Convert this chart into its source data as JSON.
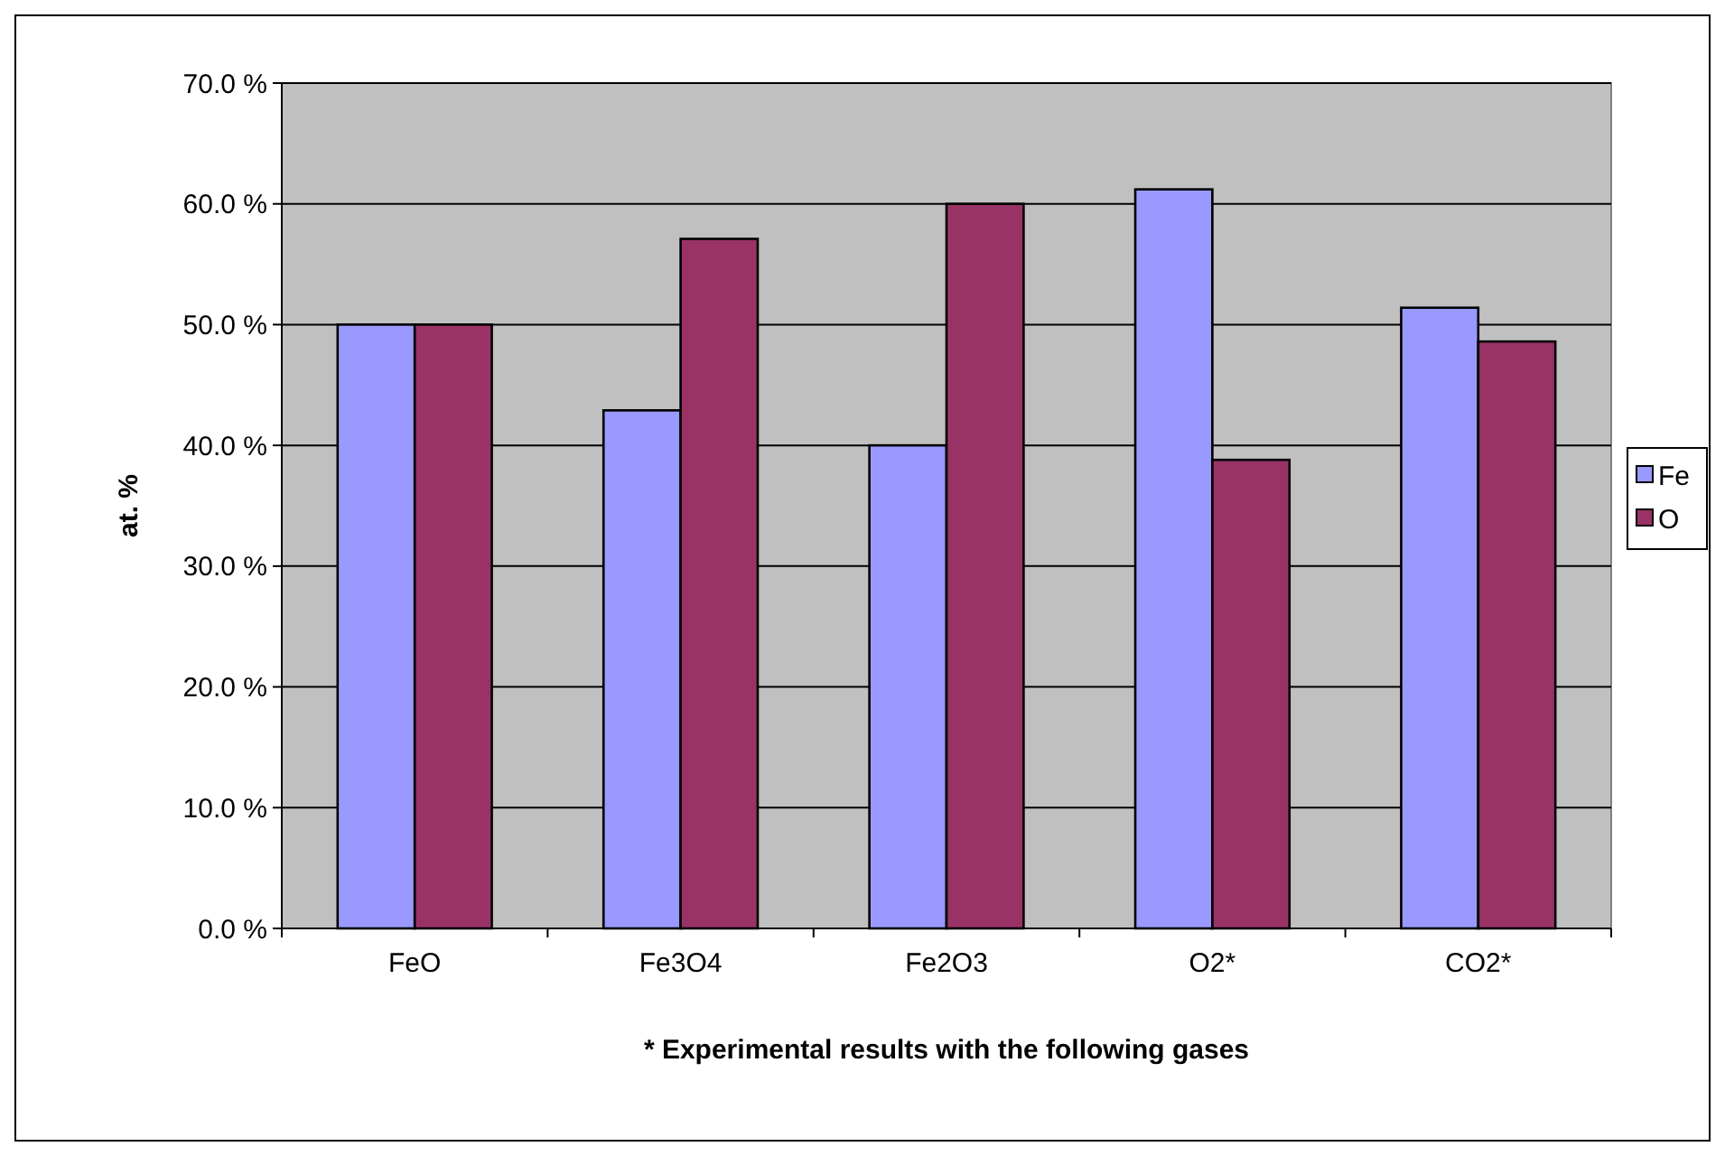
{
  "chart_data": {
    "type": "bar",
    "xlabel": "* Experimental results with the following gases",
    "ylabel": "at. %",
    "categories": [
      "FeO",
      "Fe3O4",
      "Fe2O3",
      "O2*",
      "CO2*"
    ],
    "series": [
      {
        "name": "Fe",
        "color": "#9999ff",
        "values": [
          50,
          42.9,
          40,
          61.2,
          51.4
        ]
      },
      {
        "name": "O",
        "color": "#993366",
        "values": [
          50,
          57.1,
          60,
          38.8,
          48.6
        ]
      }
    ],
    "ylim": [
      0,
      70
    ],
    "yticks": [
      {
        "value": 0,
        "label": "0.0 %"
      },
      {
        "value": 10,
        "label": "10.0 %"
      },
      {
        "value": 20,
        "label": "20.0 %"
      },
      {
        "value": 30,
        "label": "30.0 %"
      },
      {
        "value": 40,
        "label": "40.0 %"
      },
      {
        "value": 50,
        "label": "50.0 %"
      },
      {
        "value": 60,
        "label": "60.0 %"
      },
      {
        "value": 70,
        "label": "70.0 %"
      }
    ],
    "grid": "y",
    "legend": "right"
  }
}
